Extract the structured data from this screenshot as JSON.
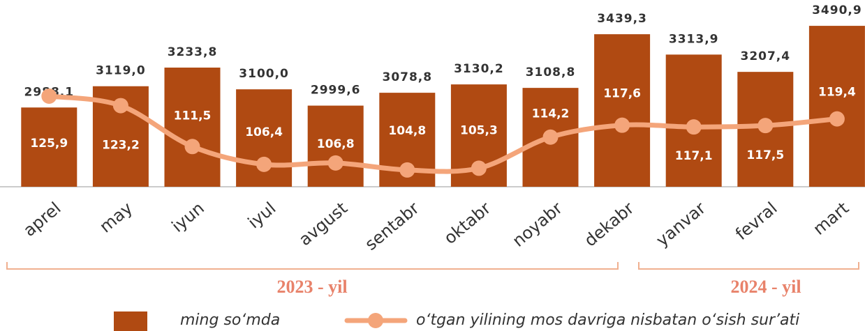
{
  "chart_data": {
    "type": "bar_line",
    "categories": [
      "aprel",
      "may",
      "iyun",
      "iyul",
      "avgust",
      "sentabr",
      "oktabr",
      "noyabr",
      "dekabr",
      "yanvar",
      "fevral",
      "mart"
    ],
    "series": [
      {
        "name": "ming so‘mda",
        "type": "bar",
        "color": "#b04a12",
        "values": [
          2988.1,
          3119.0,
          3233.8,
          3100.0,
          2999.6,
          3078.8,
          3130.2,
          3108.8,
          3439.3,
          3313.9,
          3207.4,
          3490.9
        ],
        "value_labels": [
          "2988,1",
          "3119,0",
          "3233,8",
          "3100,0",
          "2999,6",
          "3078,8",
          "3130,2",
          "3108,8",
          "3439,3",
          "3313,9",
          "3207,4",
          "3490,9"
        ]
      },
      {
        "name": "o‘tgan yilining mos davriga nisbatan o‘sish sur’ati",
        "type": "line",
        "color": "#f4a57a",
        "axis": "y2",
        "values": [
          125.9,
          123.2,
          111.5,
          106.4,
          106.8,
          104.8,
          105.3,
          114.2,
          117.6,
          117.1,
          117.5,
          119.4
        ],
        "value_labels": [
          "125,9",
          "123,2",
          "111,5",
          "106,4",
          "106,8",
          "104,8",
          "105,3",
          "114,2",
          "117,6",
          "117,1",
          "117,5",
          "119,4"
        ]
      }
    ],
    "ylim": [
      2500,
      3650
    ],
    "y2lim": [
      100,
      153.4
    ],
    "annotations": [
      "2023 - yil",
      "2024 - yil"
    ]
  }
}
